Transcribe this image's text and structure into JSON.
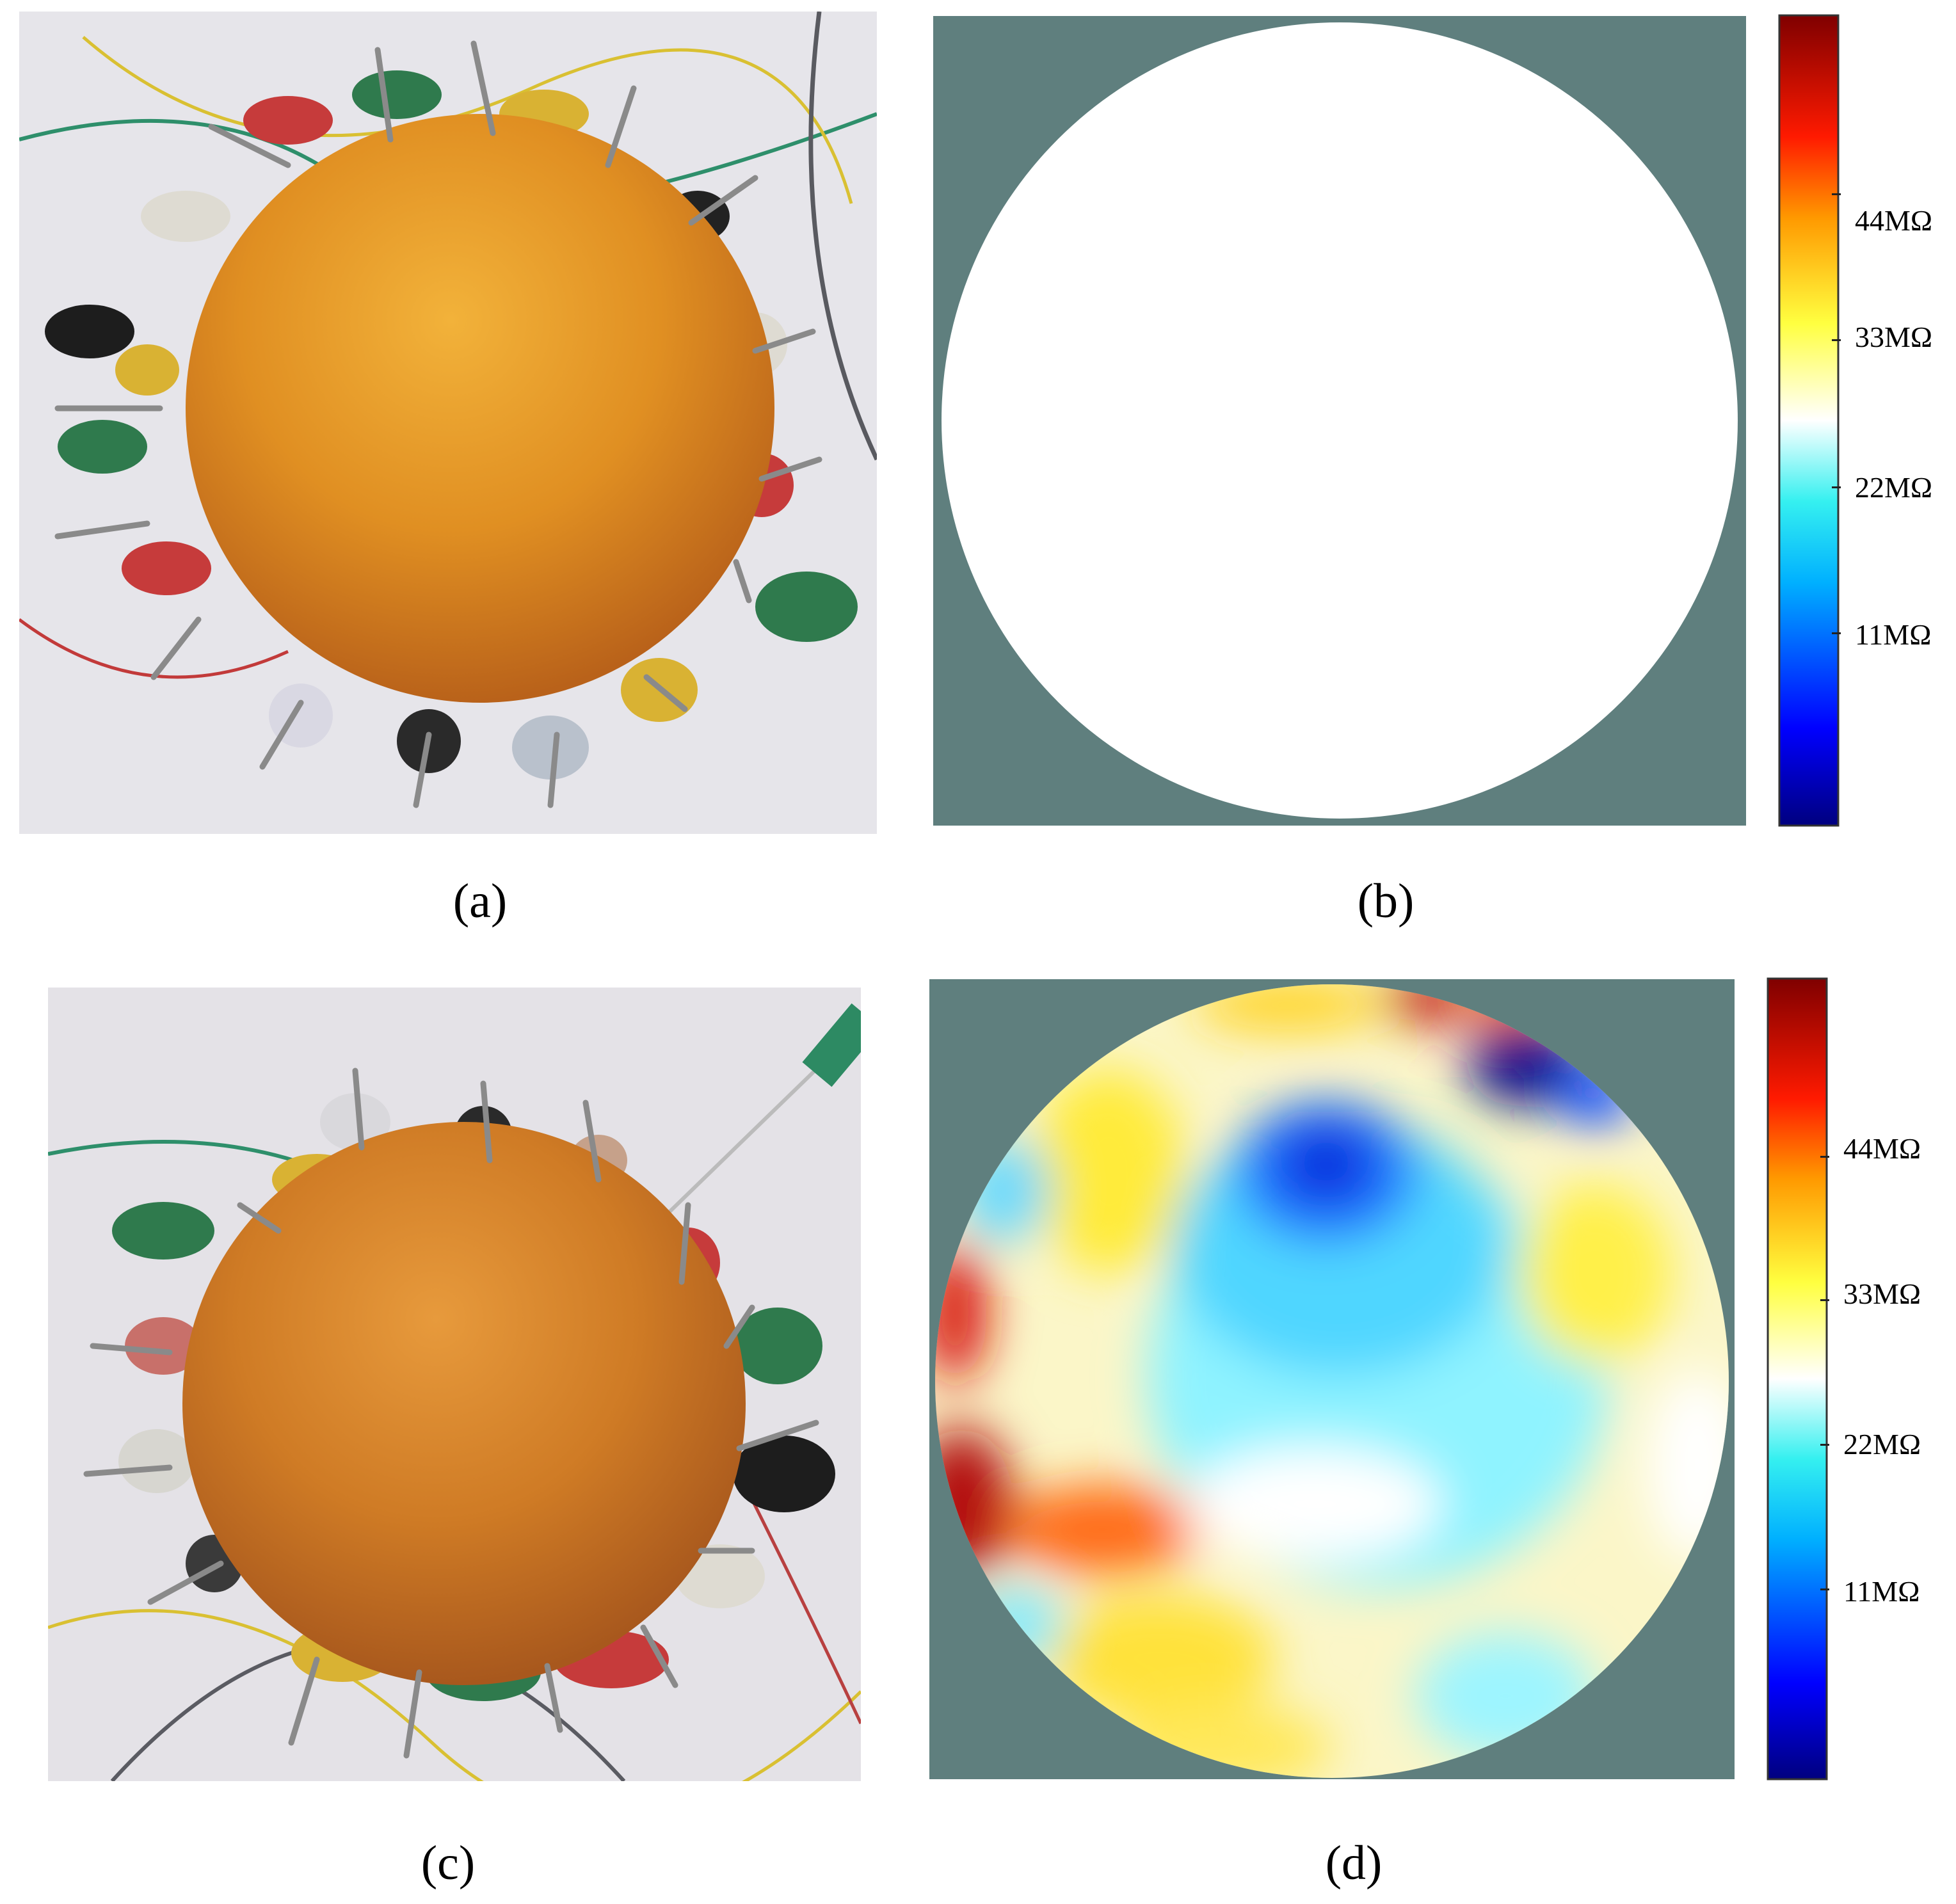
{
  "panels": {
    "a": {
      "caption": "(a)"
    },
    "b": {
      "caption": "(b)"
    },
    "c": {
      "caption": "(c)"
    },
    "d": {
      "caption": "(d)"
    }
  },
  "colorbar": {
    "colormap": "jet",
    "ticks": [
      "44MΩ",
      "33MΩ",
      "22MΩ",
      "11MΩ"
    ]
  },
  "colors": {
    "background_mask": "#5f7f7e",
    "homogeneous_field": "#ffffff"
  }
}
